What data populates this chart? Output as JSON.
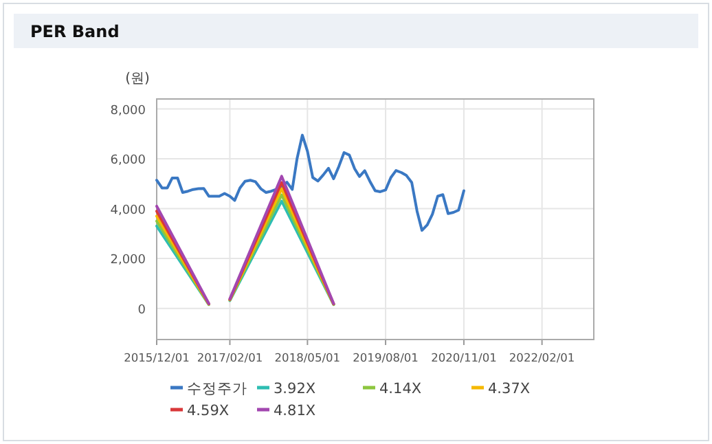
{
  "chart_data": {
    "type": "line",
    "title": "PER Band",
    "ylabel": "(원)",
    "grid": true,
    "legend": "bottom",
    "marker": "none",
    "line_style": "solid",
    "xlim": [
      "2015-12-01",
      "2022-12-01"
    ],
    "ylim": [
      -1250,
      8400
    ],
    "xticks": [
      {
        "value": "2015-12-01",
        "label": "2015/12/01"
      },
      {
        "value": "2017-02-01",
        "label": "2017/02/01"
      },
      {
        "value": "2018-05-01",
        "label": "2018/05/01"
      },
      {
        "value": "2019-08-01",
        "label": "2019/08/01"
      },
      {
        "value": "2020-11-01",
        "label": "2020/11/01"
      },
      {
        "value": "2022-02-01",
        "label": "2022/02/01"
      }
    ],
    "yticks": [
      {
        "value": 0,
        "label": "0"
      },
      {
        "value": 2000,
        "label": "2,000"
      },
      {
        "value": 4000,
        "label": "4,000"
      },
      {
        "value": 6000,
        "label": "6,000"
      },
      {
        "value": 8000,
        "label": "8,000"
      }
    ],
    "series": [
      {
        "name": "수정주가",
        "color": "#3a78c3",
        "x": [
          "2015-12",
          "2016-01",
          "2016-02",
          "2016-03",
          "2016-04",
          "2016-05",
          "2016-06",
          "2016-07",
          "2016-08",
          "2016-09",
          "2016-10",
          "2016-11",
          "2016-12",
          "2017-01",
          "2017-02",
          "2017-03",
          "2017-04",
          "2017-05",
          "2017-06",
          "2017-07",
          "2017-08",
          "2017-09",
          "2017-10",
          "2017-11",
          "2017-12",
          "2018-01",
          "2018-02",
          "2018-03",
          "2018-04",
          "2018-05",
          "2018-06",
          "2018-07",
          "2018-08",
          "2018-09",
          "2018-10",
          "2018-11",
          "2018-12",
          "2019-01",
          "2019-02",
          "2019-03",
          "2019-04",
          "2019-05",
          "2019-06",
          "2019-07",
          "2019-08",
          "2019-09",
          "2019-10",
          "2019-11",
          "2019-12",
          "2020-01",
          "2020-02",
          "2020-03",
          "2020-04",
          "2020-05",
          "2020-06",
          "2020-07",
          "2020-08",
          "2020-09",
          "2020-10",
          "2020-11"
        ],
        "values": [
          5140,
          4830,
          4830,
          5230,
          5230,
          4650,
          4700,
          4770,
          4800,
          4810,
          4500,
          4500,
          4500,
          4610,
          4500,
          4330,
          4830,
          5100,
          5140,
          5080,
          4800,
          4650,
          4700,
          4780,
          4900,
          5060,
          4770,
          6000,
          6950,
          6300,
          5250,
          5110,
          5350,
          5620,
          5200,
          5700,
          6250,
          6150,
          5600,
          5290,
          5520,
          5100,
          4720,
          4680,
          4750,
          5250,
          5530,
          5450,
          5330,
          5050,
          3900,
          3130,
          3350,
          3780,
          4500,
          4560,
          3800,
          3850,
          3940,
          4720
        ]
      },
      {
        "name": "3.92X",
        "color": "#2dbdb2",
        "x": [
          "2015-12",
          "2016-10",
          "2016-12",
          "2017-02",
          "2017-12",
          "2018-10"
        ],
        "values": [
          3300,
          150,
          null,
          310,
          4300,
          150
        ]
      },
      {
        "name": "4.14X",
        "color": "#8dc63f",
        "x": [
          "2015-12",
          "2016-10",
          "2016-12",
          "2017-02",
          "2017-12",
          "2018-10"
        ],
        "values": [
          3500,
          160,
          null,
          330,
          4550,
          160
        ]
      },
      {
        "name": "4.37X",
        "color": "#f5b800",
        "x": [
          "2015-12",
          "2016-10",
          "2016-12",
          "2017-02",
          "2017-12",
          "2018-10"
        ],
        "values": [
          3700,
          170,
          null,
          350,
          4800,
          170
        ]
      },
      {
        "name": "4.59X",
        "color": "#d9383a",
        "x": [
          "2015-12",
          "2016-10",
          "2016-12",
          "2017-02",
          "2017-12",
          "2018-10"
        ],
        "values": [
          3900,
          180,
          null,
          360,
          5050,
          180
        ]
      },
      {
        "name": "4.81X",
        "color": "#a347b0",
        "x": [
          "2015-12",
          "2016-10",
          "2016-12",
          "2017-02",
          "2017-12",
          "2018-10"
        ],
        "values": [
          4100,
          190,
          null,
          380,
          5300,
          190
        ]
      }
    ]
  }
}
